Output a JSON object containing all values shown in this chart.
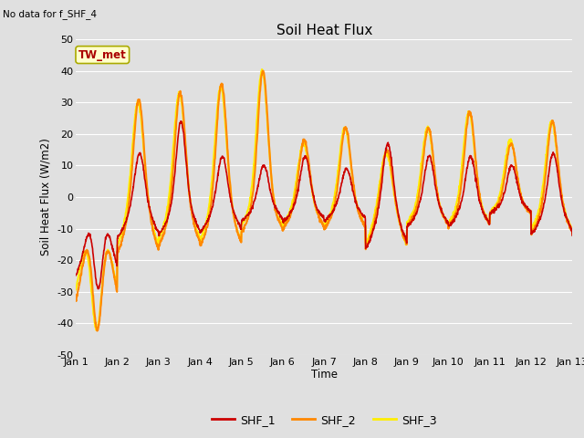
{
  "title": "Soil Heat Flux",
  "subtitle": "No data for f_SHF_4",
  "ylabel": "Soil Heat Flux (W/m2)",
  "xlabel": "Time",
  "ylim": [
    -50,
    50
  ],
  "yticks": [
    -50,
    -40,
    -30,
    -20,
    -10,
    0,
    10,
    20,
    30,
    40,
    50
  ],
  "xtick_labels": [
    "Jan 1",
    "Jan 2",
    "Jan 3",
    "Jan 4",
    "Jan 5",
    "Jan 6",
    "Jan 7",
    "Jan 8",
    "Jan 9",
    "Jan 10",
    "Jan 11",
    "Jan 12",
    "Jan 13"
  ],
  "colors": {
    "SHF_1": "#cc0000",
    "SHF_2": "#ff8800",
    "SHF_3": "#ffee00"
  },
  "legend_labels": [
    "SHF_1",
    "SHF_2",
    "SHF_3"
  ],
  "annotation": "TW_met",
  "annotation_box_color": "#ffffcc",
  "annotation_box_edge": "#aaaa00",
  "bg_color": "#e0e0e0",
  "plot_bg_color": "#e0e0e0",
  "grid_color": "#ffffff",
  "n_days": 12,
  "pts_per_day": 144,
  "peak_amps_shf2": [
    -42,
    31,
    33,
    36,
    40,
    18,
    22,
    15,
    22,
    27,
    17,
    24
  ],
  "trough_amps_shf2": [
    -42,
    -23,
    -20,
    -20,
    -14,
    -13,
    -13,
    -21,
    -12,
    -12,
    -7,
    -15
  ],
  "peak_amps_shf3": [
    -42,
    30,
    33,
    35,
    40,
    17,
    22,
    14,
    22,
    27,
    18,
    24
  ],
  "trough_amps_shf3": [
    -42,
    -22,
    -19,
    -20,
    -13,
    -13,
    -13,
    -22,
    -12,
    -12,
    -7,
    -15
  ],
  "peak_amps_shf1": [
    -29,
    14,
    24,
    13,
    10,
    13,
    9,
    17,
    13,
    13,
    10,
    14
  ],
  "trough_amps_shf1": [
    -29,
    -15,
    -14,
    -13,
    -9,
    -9,
    -9,
    -19,
    -11,
    -11,
    -6,
    -14
  ]
}
